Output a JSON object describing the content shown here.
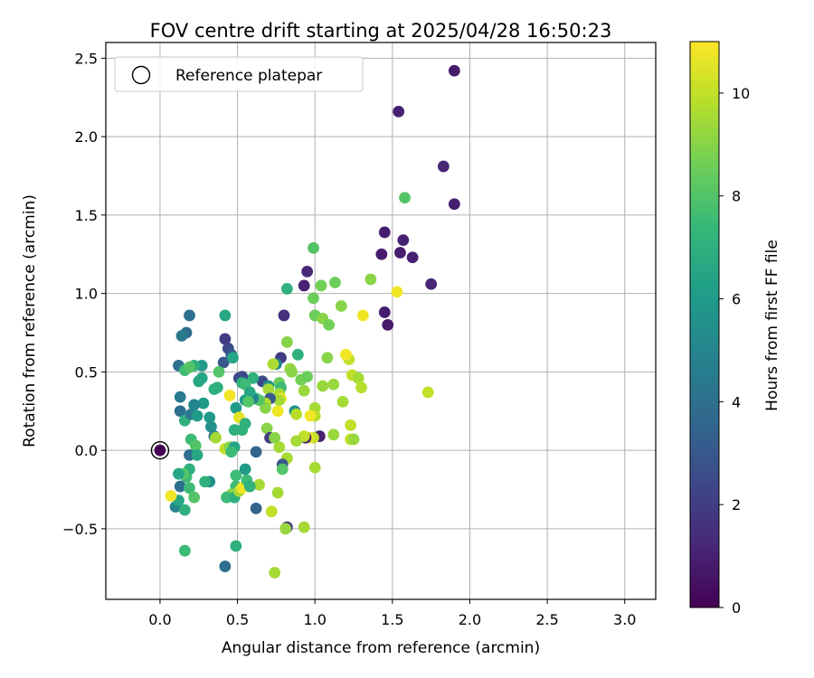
{
  "chart_data": {
    "type": "scatter",
    "title": "FOV centre drift starting at 2025/04/28 16:50:23",
    "xlabel": "Angular distance from reference (arcmin)",
    "ylabel": "Rotation from reference (arcmin)",
    "xlim": [
      -0.35,
      3.2
    ],
    "ylim": [
      -0.95,
      2.6
    ],
    "x_ticks": [
      0.0,
      0.5,
      1.0,
      1.5,
      2.0,
      2.5,
      3.0
    ],
    "x_tick_labels": [
      "0.0",
      "0.5",
      "1.0",
      "1.5",
      "2.0",
      "2.5",
      "3.0"
    ],
    "y_ticks": [
      -0.5,
      0.0,
      0.5,
      1.0,
      1.5,
      2.0,
      2.5
    ],
    "y_tick_labels": [
      "−0.5",
      "0.0",
      "0.5",
      "1.0",
      "1.5",
      "2.0",
      "2.5"
    ],
    "grid": true,
    "legend": {
      "placement": "top-left",
      "label": "Reference platepar"
    },
    "reference_point": {
      "x": 0.0,
      "y": 0.0,
      "hours": 0
    },
    "colorbar": {
      "label": "Hours from first FF file",
      "range": [
        0,
        11
      ],
      "ticks": [
        0,
        2,
        4,
        6,
        8,
        10
      ],
      "tick_labels": [
        "0",
        "2",
        "4",
        "6",
        "8",
        "10"
      ],
      "colormap": [
        "#440154",
        "#482878",
        "#3e4989",
        "#31688e",
        "#26828e",
        "#1f9e89",
        "#35b779",
        "#6ece58",
        "#b5de2b",
        "#fde725"
      ]
    },
    "points": [
      {
        "x": 1.9,
        "y": 2.42,
        "h": 0.8
      },
      {
        "x": 1.54,
        "y": 2.16,
        "h": 1.0
      },
      {
        "x": 1.83,
        "y": 1.81,
        "h": 1.2
      },
      {
        "x": 1.9,
        "y": 1.57,
        "h": 1.0
      },
      {
        "x": 1.58,
        "y": 1.61,
        "h": 8.0
      },
      {
        "x": 1.45,
        "y": 1.39,
        "h": 0.9
      },
      {
        "x": 1.57,
        "y": 1.34,
        "h": 1.0
      },
      {
        "x": 1.43,
        "y": 1.25,
        "h": 0.8
      },
      {
        "x": 1.55,
        "y": 1.26,
        "h": 0.9
      },
      {
        "x": 1.63,
        "y": 1.23,
        "h": 1.0
      },
      {
        "x": 1.75,
        "y": 1.06,
        "h": 1.2
      },
      {
        "x": 1.45,
        "y": 0.88,
        "h": 0.9
      },
      {
        "x": 1.47,
        "y": 0.8,
        "h": 0.8
      },
      {
        "x": 1.53,
        "y": 1.01,
        "h": 10.8
      },
      {
        "x": 1.36,
        "y": 1.09,
        "h": 9.0
      },
      {
        "x": 0.99,
        "y": 1.29,
        "h": 8.0
      },
      {
        "x": 0.95,
        "y": 1.14,
        "h": 1.2
      },
      {
        "x": 0.93,
        "y": 1.05,
        "h": 1.0
      },
      {
        "x": 1.13,
        "y": 1.07,
        "h": 8.5
      },
      {
        "x": 1.04,
        "y": 1.05,
        "h": 8.6
      },
      {
        "x": 0.99,
        "y": 0.97,
        "h": 8.5
      },
      {
        "x": 1.0,
        "y": 0.86,
        "h": 8.5
      },
      {
        "x": 1.05,
        "y": 0.84,
        "h": 9.0
      },
      {
        "x": 1.09,
        "y": 0.8,
        "h": 8.6
      },
      {
        "x": 1.17,
        "y": 0.92,
        "h": 9.0
      },
      {
        "x": 1.31,
        "y": 0.86,
        "h": 10.8
      },
      {
        "x": 0.82,
        "y": 1.03,
        "h": 7.0
      },
      {
        "x": 0.8,
        "y": 0.86,
        "h": 1.5
      },
      {
        "x": 0.82,
        "y": 0.69,
        "h": 9.0
      },
      {
        "x": 0.89,
        "y": 0.61,
        "h": 7.0
      },
      {
        "x": 0.78,
        "y": 0.59,
        "h": 2.0
      },
      {
        "x": 0.75,
        "y": 0.55,
        "h": 5.0
      },
      {
        "x": 0.73,
        "y": 0.55,
        "h": 9.6
      },
      {
        "x": 0.84,
        "y": 0.52,
        "h": 9.3
      },
      {
        "x": 0.85,
        "y": 0.5,
        "h": 9.0
      },
      {
        "x": 0.91,
        "y": 0.45,
        "h": 8.6
      },
      {
        "x": 0.95,
        "y": 0.47,
        "h": 8.5
      },
      {
        "x": 0.77,
        "y": 0.43,
        "h": 8.5
      },
      {
        "x": 0.66,
        "y": 0.44,
        "h": 2.5
      },
      {
        "x": 0.7,
        "y": 0.41,
        "h": 5.5
      },
      {
        "x": 0.78,
        "y": 0.4,
        "h": 7.5
      },
      {
        "x": 0.7,
        "y": 0.39,
        "h": 9.5
      },
      {
        "x": 0.77,
        "y": 0.36,
        "h": 9.5
      },
      {
        "x": 0.93,
        "y": 0.38,
        "h": 9.3
      },
      {
        "x": 1.05,
        "y": 0.41,
        "h": 9.3
      },
      {
        "x": 1.12,
        "y": 0.42,
        "h": 9.3
      },
      {
        "x": 1.22,
        "y": 0.58,
        "h": 10.0
      },
      {
        "x": 1.2,
        "y": 0.61,
        "h": 10.8
      },
      {
        "x": 1.08,
        "y": 0.59,
        "h": 9.0
      },
      {
        "x": 1.24,
        "y": 0.48,
        "h": 10.0
      },
      {
        "x": 1.28,
        "y": 0.46,
        "h": 9.5
      },
      {
        "x": 1.3,
        "y": 0.4,
        "h": 9.8
      },
      {
        "x": 1.18,
        "y": 0.31,
        "h": 9.5
      },
      {
        "x": 1.0,
        "y": 0.27,
        "h": 9.5
      },
      {
        "x": 1.0,
        "y": 0.22,
        "h": 9.8
      },
      {
        "x": 0.97,
        "y": 0.22,
        "h": 10.8
      },
      {
        "x": 1.23,
        "y": 0.16,
        "h": 10.0
      },
      {
        "x": 1.12,
        "y": 0.1,
        "h": 9.3
      },
      {
        "x": 1.03,
        "y": 0.09,
        "h": 1.0
      },
      {
        "x": 0.99,
        "y": 0.08,
        "h": 10.0
      },
      {
        "x": 0.96,
        "y": 0.08,
        "h": 10.5
      },
      {
        "x": 0.94,
        "y": 0.08,
        "h": 1.0
      },
      {
        "x": 0.93,
        "y": 0.09,
        "h": 10.0
      },
      {
        "x": 1.23,
        "y": 0.07,
        "h": 10.0
      },
      {
        "x": 1.25,
        "y": 0.07,
        "h": 9.3
      },
      {
        "x": 1.73,
        "y": 0.37,
        "h": 10.0
      },
      {
        "x": 0.87,
        "y": 0.25,
        "h": 5.5
      },
      {
        "x": 0.88,
        "y": 0.23,
        "h": 9.8
      },
      {
        "x": 0.76,
        "y": 0.25,
        "h": 10.8
      },
      {
        "x": 0.78,
        "y": 0.33,
        "h": 10.8
      },
      {
        "x": 0.77,
        "y": 0.32,
        "h": 9.5
      },
      {
        "x": 0.71,
        "y": 0.33,
        "h": 3.0
      },
      {
        "x": 0.68,
        "y": 0.3,
        "h": 9.8
      },
      {
        "x": 0.68,
        "y": 0.27,
        "h": 9.0
      },
      {
        "x": 0.69,
        "y": 0.14,
        "h": 9.0
      },
      {
        "x": 0.71,
        "y": 0.08,
        "h": 2.0
      },
      {
        "x": 0.74,
        "y": 0.08,
        "h": 9.0
      },
      {
        "x": 0.77,
        "y": 0.02,
        "h": 9.5
      },
      {
        "x": 0.82,
        "y": -0.05,
        "h": 9.5
      },
      {
        "x": 0.88,
        "y": 0.06,
        "h": 9.5
      },
      {
        "x": 1.0,
        "y": -0.11,
        "h": 9.5
      },
      {
        "x": 0.79,
        "y": -0.09,
        "h": 3.0
      },
      {
        "x": 0.79,
        "y": -0.12,
        "h": 8.0
      },
      {
        "x": 0.76,
        "y": -0.27,
        "h": 9.5
      },
      {
        "x": 0.64,
        "y": -0.22,
        "h": 9.5
      },
      {
        "x": 0.62,
        "y": -0.37,
        "h": 3.5
      },
      {
        "x": 0.72,
        "y": -0.39,
        "h": 10.0
      },
      {
        "x": 0.82,
        "y": -0.49,
        "h": 2.0
      },
      {
        "x": 0.81,
        "y": -0.5,
        "h": 9.3
      },
      {
        "x": 0.93,
        "y": -0.49,
        "h": 9.5
      },
      {
        "x": 0.74,
        "y": -0.78,
        "h": 9.5
      },
      {
        "x": 0.62,
        "y": -0.01,
        "h": 3.5
      },
      {
        "x": 0.62,
        "y": 0.33,
        "h": 7.5
      },
      {
        "x": 0.64,
        "y": 0.32,
        "h": 8.0
      },
      {
        "x": 0.6,
        "y": 0.33,
        "h": 5.0
      },
      {
        "x": 0.6,
        "y": 0.46,
        "h": 7.0
      },
      {
        "x": 0.53,
        "y": 0.47,
        "h": 2.5
      },
      {
        "x": 0.51,
        "y": 0.46,
        "h": 2.5
      },
      {
        "x": 0.53,
        "y": 0.43,
        "h": 7.0
      },
      {
        "x": 0.55,
        "y": 0.42,
        "h": 7.5
      },
      {
        "x": 0.55,
        "y": 0.32,
        "h": 6.0
      },
      {
        "x": 0.58,
        "y": 0.37,
        "h": 6.5
      },
      {
        "x": 0.57,
        "y": 0.31,
        "h": 8.0
      },
      {
        "x": 0.49,
        "y": 0.27,
        "h": 6.0
      },
      {
        "x": 0.51,
        "y": 0.21,
        "h": 10.5
      },
      {
        "x": 0.48,
        "y": 0.13,
        "h": 7.0
      },
      {
        "x": 0.53,
        "y": 0.13,
        "h": 7.0
      },
      {
        "x": 0.55,
        "y": 0.17,
        "h": 7.0
      },
      {
        "x": 0.45,
        "y": 0.35,
        "h": 10.8
      },
      {
        "x": 0.41,
        "y": 0.56,
        "h": 3.0
      },
      {
        "x": 0.44,
        "y": 0.65,
        "h": 2.5
      },
      {
        "x": 0.42,
        "y": 0.71,
        "h": 2.0
      },
      {
        "x": 0.46,
        "y": 0.61,
        "h": 3.0
      },
      {
        "x": 0.47,
        "y": 0.59,
        "h": 6.5
      },
      {
        "x": 0.42,
        "y": 0.86,
        "h": 6.5
      },
      {
        "x": 0.38,
        "y": 0.5,
        "h": 8.0
      },
      {
        "x": 0.37,
        "y": 0.4,
        "h": 7.0
      },
      {
        "x": 0.35,
        "y": 0.39,
        "h": 7.0
      },
      {
        "x": 0.32,
        "y": 0.21,
        "h": 6.0
      },
      {
        "x": 0.33,
        "y": 0.15,
        "h": 5.5
      },
      {
        "x": 0.35,
        "y": 0.09,
        "h": 4.5
      },
      {
        "x": 0.36,
        "y": 0.08,
        "h": 9.5
      },
      {
        "x": 0.42,
        "y": 0.01,
        "h": 10.0
      },
      {
        "x": 0.45,
        "y": 0.02,
        "h": 9.0
      },
      {
        "x": 0.48,
        "y": 0.02,
        "h": 6.5
      },
      {
        "x": 0.46,
        "y": -0.01,
        "h": 7.5
      },
      {
        "x": 0.49,
        "y": -0.16,
        "h": 7.5
      },
      {
        "x": 0.49,
        "y": -0.23,
        "h": 7.5
      },
      {
        "x": 0.48,
        "y": -0.27,
        "h": 7.5
      },
      {
        "x": 0.46,
        "y": -0.28,
        "h": 9.0
      },
      {
        "x": 0.43,
        "y": -0.3,
        "h": 7.5
      },
      {
        "x": 0.48,
        "y": -0.3,
        "h": 7.0
      },
      {
        "x": 0.51,
        "y": -0.26,
        "h": 9.5
      },
      {
        "x": 0.53,
        "y": -0.24,
        "h": 10.8
      },
      {
        "x": 0.55,
        "y": -0.12,
        "h": 6.0
      },
      {
        "x": 0.56,
        "y": -0.19,
        "h": 7.5
      },
      {
        "x": 0.58,
        "y": -0.23,
        "h": 7.0
      },
      {
        "x": 0.49,
        "y": -0.61,
        "h": 7.0
      },
      {
        "x": 0.42,
        "y": -0.74,
        "h": 4.0
      },
      {
        "x": 0.32,
        "y": -0.2,
        "h": 5.5
      },
      {
        "x": 0.29,
        "y": -0.2,
        "h": 7.0
      },
      {
        "x": 0.28,
        "y": 0.3,
        "h": 6.0
      },
      {
        "x": 0.27,
        "y": 0.54,
        "h": 6.0
      },
      {
        "x": 0.27,
        "y": 0.46,
        "h": 6.5
      },
      {
        "x": 0.25,
        "y": 0.44,
        "h": 6.5
      },
      {
        "x": 0.22,
        "y": 0.54,
        "h": 7.0
      },
      {
        "x": 0.19,
        "y": 0.86,
        "h": 4.0
      },
      {
        "x": 0.17,
        "y": 0.75,
        "h": 4.0
      },
      {
        "x": 0.14,
        "y": 0.73,
        "h": 4.5
      },
      {
        "x": 0.12,
        "y": 0.54,
        "h": 4.0
      },
      {
        "x": 0.16,
        "y": 0.51,
        "h": 7.5
      },
      {
        "x": 0.19,
        "y": 0.53,
        "h": 8.0
      },
      {
        "x": 0.13,
        "y": 0.34,
        "h": 4.5
      },
      {
        "x": 0.13,
        "y": 0.25,
        "h": 4.0
      },
      {
        "x": 0.16,
        "y": 0.19,
        "h": 7.0
      },
      {
        "x": 0.2,
        "y": 0.23,
        "h": 4.5
      },
      {
        "x": 0.22,
        "y": 0.29,
        "h": 5.0
      },
      {
        "x": 0.24,
        "y": 0.22,
        "h": 6.0
      },
      {
        "x": 0.2,
        "y": 0.07,
        "h": 7.5
      },
      {
        "x": 0.23,
        "y": 0.03,
        "h": 8.0
      },
      {
        "x": 0.19,
        "y": -0.03,
        "h": 4.0
      },
      {
        "x": 0.24,
        "y": -0.03,
        "h": 6.5
      },
      {
        "x": 0.17,
        "y": -0.17,
        "h": 7.5
      },
      {
        "x": 0.19,
        "y": -0.12,
        "h": 7.0
      },
      {
        "x": 0.15,
        "y": -0.15,
        "h": 8.0
      },
      {
        "x": 0.12,
        "y": -0.15,
        "h": 6.5
      },
      {
        "x": 0.13,
        "y": -0.23,
        "h": 4.0
      },
      {
        "x": 0.19,
        "y": -0.24,
        "h": 7.5
      },
      {
        "x": 0.22,
        "y": -0.3,
        "h": 8.0
      },
      {
        "x": 0.1,
        "y": -0.36,
        "h": 5.0
      },
      {
        "x": 0.12,
        "y": -0.32,
        "h": 6.5
      },
      {
        "x": 0.16,
        "y": -0.38,
        "h": 7.0
      },
      {
        "x": 0.07,
        "y": -0.29,
        "h": 10.8
      },
      {
        "x": 0.16,
        "y": -0.64,
        "h": 7.5
      },
      {
        "x": 0.0,
        "y": 0.0,
        "h": 0.0
      }
    ]
  }
}
